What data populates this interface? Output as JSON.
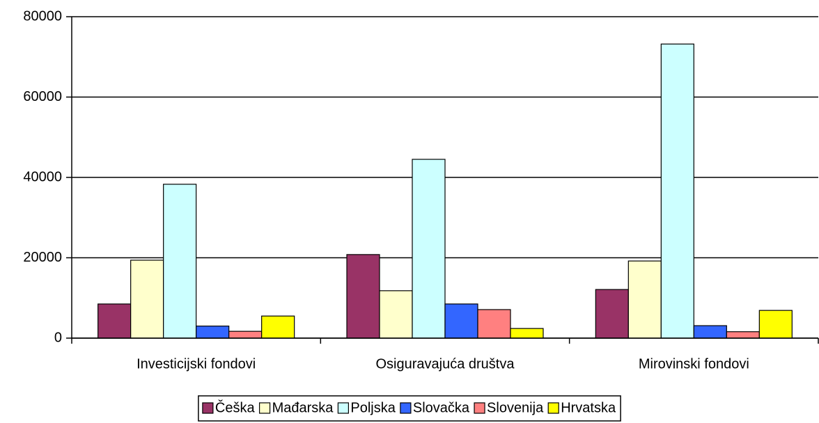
{
  "chart_data": {
    "type": "bar",
    "categories": [
      "Investicijski fondovi",
      "Osiguravajuća društva",
      "Mirovinski fondovi"
    ],
    "series": [
      {
        "name": "Češka",
        "color": "#993366",
        "values": [
          8500,
          20800,
          12100
        ]
      },
      {
        "name": "Mađarska",
        "color": "#FFFFCC",
        "values": [
          19400,
          11800,
          19200
        ]
      },
      {
        "name": "Poljska",
        "color": "#CCFFFF",
        "values": [
          38300,
          44500,
          73200
        ]
      },
      {
        "name": "Slovačka",
        "color": "#3366FF",
        "values": [
          3000,
          8500,
          3100
        ]
      },
      {
        "name": "Slovenija",
        "color": "#FF8080",
        "values": [
          1700,
          7100,
          1600
        ]
      },
      {
        "name": "Hrvatska",
        "color": "#FFFF00",
        "values": [
          5500,
          2400,
          6900
        ]
      }
    ],
    "ylim": [
      0,
      80000
    ],
    "yticks": [
      0,
      20000,
      40000,
      60000,
      80000
    ],
    "grid": true,
    "legend": "bottom"
  }
}
